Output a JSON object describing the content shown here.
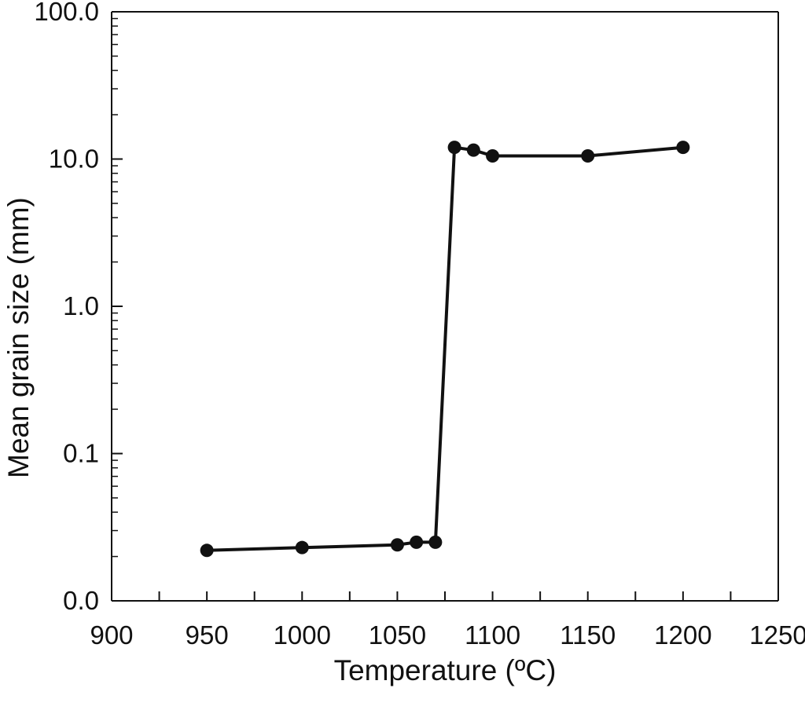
{
  "chart_data": {
    "type": "line",
    "title": "",
    "xlabel": "Temperature (ºC)",
    "ylabel": "Mean grain size (mm)",
    "x_scale": "linear",
    "y_scale": "log",
    "xlim": [
      900,
      1250
    ],
    "x_ticks": [
      900,
      950,
      1000,
      1050,
      1100,
      1150,
      1200,
      1250
    ],
    "x_tick_labels": [
      "900",
      "950",
      "1000",
      "1050",
      "1100",
      "1150",
      "1200",
      "1250"
    ],
    "y_ticks": [
      "0.0",
      "0.1",
      "1.0",
      "10.0",
      "100.0"
    ],
    "grid": false,
    "legend": false,
    "series": [
      {
        "x": [
          950,
          1000,
          1050,
          1060,
          1070,
          1080,
          1090,
          1100,
          1150,
          1200
        ],
        "y": [
          0.022,
          0.023,
          0.024,
          0.025,
          0.025,
          12.0,
          11.5,
          10.5,
          10.5,
          12.0
        ]
      }
    ],
    "colors": {
      "line": "#111111",
      "marker": "#111111",
      "axis": "#111111"
    }
  }
}
